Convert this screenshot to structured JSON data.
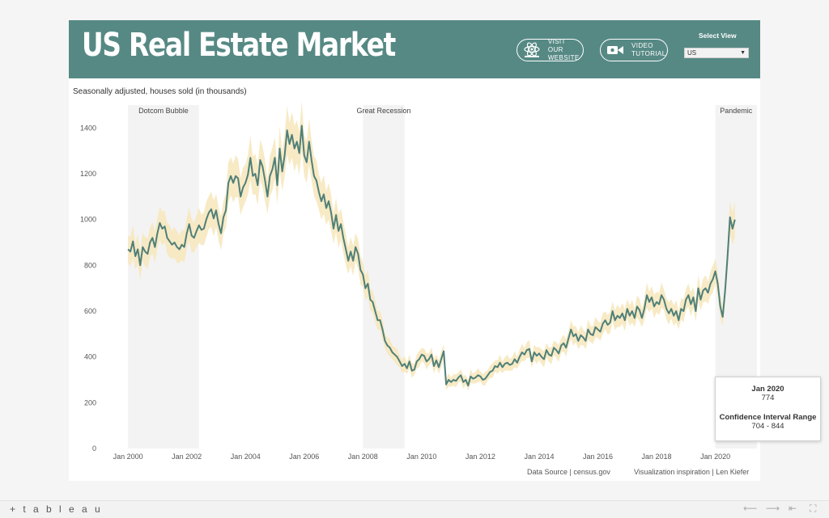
{
  "header": {
    "title": "US Real Estate Market",
    "website_line1": "VISIT OUR",
    "website_line2": "WEBSITE",
    "video_line1": "VIDEO",
    "video_line2": "TUTORIAL",
    "select_label": "Select View",
    "select_value": "US"
  },
  "subtitle": "Seasonally adjusted, houses sold (in thousands)",
  "footer": {
    "source": "Data Source | census.gov",
    "inspiration": "Visualization inspiration |  Len Kiefer"
  },
  "tooltip": {
    "date": "Jan 2020",
    "value": "774",
    "ci_label": "Confidence Interval Range",
    "ci_range": "704 - 844"
  },
  "bottom_bar": {
    "logo": "+ t a b l e a u"
  },
  "colors": {
    "header": "#568984",
    "line": "#4f7f78",
    "band": "#f6e8bf",
    "recession": "#f3f3f3"
  },
  "chart_data": {
    "type": "line",
    "title": "",
    "xlabel": "",
    "ylabel": "Seasonally adjusted, houses sold (in thousands)",
    "xlim": [
      "Aug 1999",
      "Jun 2021"
    ],
    "ylim": [
      0,
      1500
    ],
    "yticks": [
      0,
      200,
      400,
      600,
      800,
      1000,
      1200,
      1400
    ],
    "xticks": [
      "Jan 2000",
      "Jan 2002",
      "Jan 2004",
      "Jan 2006",
      "Jan 2008",
      "Jan 2010",
      "Jan 2012",
      "Jan 2014",
      "Jan 2016",
      "Jan 2018",
      "Jan 2020"
    ],
    "grid": false,
    "annotations": [
      {
        "label": "Dotcom Bubble",
        "start": "Jan 2000",
        "end": "Jun 2002"
      },
      {
        "label": "Great Recession",
        "start": "Jan 2008",
        "end": "Jun 2009"
      },
      {
        "label": "Pandemic",
        "start": "Jan 2020",
        "end": "Jun 2021"
      }
    ],
    "series": [
      {
        "confidence_band": "shaded range around line",
        "points": [
          [
            "Jan 2000",
            870
          ],
          [
            "Feb 2000",
            860
          ],
          [
            "Mar 2000",
            905
          ],
          [
            "Apr 2000",
            840
          ],
          [
            "May 2000",
            870
          ],
          [
            "Jun 2000",
            800
          ],
          [
            "Jul 2000",
            880
          ],
          [
            "Aug 2000",
            860
          ],
          [
            "Sep 2000",
            850
          ],
          [
            "Oct 2000",
            900
          ],
          [
            "Nov 2000",
            920
          ],
          [
            "Dec 2000",
            880
          ],
          [
            "Jan 2001",
            940
          ],
          [
            "Feb 2001",
            985
          ],
          [
            "Mar 2001",
            960
          ],
          [
            "Apr 2001",
            970
          ],
          [
            "May 2001",
            920
          ],
          [
            "Jun 2001",
            905
          ],
          [
            "Jul 2001",
            890
          ],
          [
            "Aug 2001",
            900
          ],
          [
            "Sep 2001",
            880
          ],
          [
            "Oct 2001",
            870
          ],
          [
            "Nov 2001",
            890
          ],
          [
            "Dec 2001",
            880
          ],
          [
            "Jan 2002",
            940
          ],
          [
            "Feb 2002",
            980
          ],
          [
            "Mar 2002",
            930
          ],
          [
            "Apr 2002",
            920
          ],
          [
            "May 2002",
            950
          ],
          [
            "Jun 2002",
            975
          ],
          [
            "Jul 2002",
            955
          ],
          [
            "Aug 2002",
            960
          ],
          [
            "Sep 2002",
            1000
          ],
          [
            "Oct 2002",
            1030
          ],
          [
            "Nov 2002",
            1045
          ],
          [
            "Dec 2002",
            1005
          ],
          [
            "Jan 2003",
            1040
          ],
          [
            "Feb 2003",
            980
          ],
          [
            "Mar 2003",
            940
          ],
          [
            "Apr 2003",
            1010
          ],
          [
            "May 2003",
            1040
          ],
          [
            "Jun 2003",
            1160
          ],
          [
            "Jul 2003",
            1190
          ],
          [
            "Aug 2003",
            1160
          ],
          [
            "Sep 2003",
            1190
          ],
          [
            "Oct 2003",
            1180
          ],
          [
            "Nov 2003",
            1100
          ],
          [
            "Dec 2003",
            1140
          ],
          [
            "Jan 2004",
            1160
          ],
          [
            "Feb 2004",
            1195
          ],
          [
            "Mar 2004",
            1270
          ],
          [
            "Apr 2004",
            1190
          ],
          [
            "May 2004",
            1200
          ],
          [
            "Jun 2004",
            1150
          ],
          [
            "Jul 2004",
            1260
          ],
          [
            "Aug 2004",
            1230
          ],
          [
            "Sep 2004",
            1170
          ],
          [
            "Oct 2004",
            1100
          ],
          [
            "Nov 2004",
            1190
          ],
          [
            "Dec 2004",
            1220
          ],
          [
            "Jan 2005",
            1270
          ],
          [
            "Feb 2005",
            1150
          ],
          [
            "Mar 2005",
            1310
          ],
          [
            "Apr 2005",
            1210
          ],
          [
            "May 2005",
            1280
          ],
          [
            "Jun 2005",
            1390
          ],
          [
            "Jul 2005",
            1330
          ],
          [
            "Aug 2005",
            1370
          ],
          [
            "Sep 2005",
            1310
          ],
          [
            "Oct 2005",
            1340
          ],
          [
            "Nov 2005",
            1290
          ],
          [
            "Dec 2005",
            1410
          ],
          [
            "Jan 2006",
            1280
          ],
          [
            "Feb 2006",
            1250
          ],
          [
            "Mar 2006",
            1340
          ],
          [
            "Apr 2006",
            1260
          ],
          [
            "May 2006",
            1190
          ],
          [
            "Jun 2006",
            1170
          ],
          [
            "Jul 2006",
            1120
          ],
          [
            "Aug 2006",
            1080
          ],
          [
            "Sep 2006",
            1110
          ],
          [
            "Oct 2006",
            1050
          ],
          [
            "Nov 2006",
            1080
          ],
          [
            "Dec 2006",
            1030
          ],
          [
            "Jan 2007",
            960
          ],
          [
            "Feb 2007",
            1020
          ],
          [
            "Mar 2007",
            950
          ],
          [
            "Apr 2007",
            980
          ],
          [
            "May 2007",
            920
          ],
          [
            "Jun 2007",
            870
          ],
          [
            "Jul 2007",
            820
          ],
          [
            "Aug 2007",
            860
          ],
          [
            "Sep 2007",
            820
          ],
          [
            "Oct 2007",
            880
          ],
          [
            "Nov 2007",
            850
          ],
          [
            "Dec 2007",
            780
          ],
          [
            "Jan 2008",
            760
          ],
          [
            "Feb 2008",
            700
          ],
          [
            "Mar 2008",
            720
          ],
          [
            "Apr 2008",
            650
          ],
          [
            "May 2008",
            640
          ],
          [
            "Jun 2008",
            600
          ],
          [
            "Jul 2008",
            560
          ],
          [
            "Aug 2008",
            560
          ],
          [
            "Sep 2008",
            520
          ],
          [
            "Oct 2008",
            470
          ],
          [
            "Nov 2008",
            450
          ],
          [
            "Dec 2008",
            440
          ],
          [
            "Jan 2009",
            420
          ],
          [
            "Feb 2009",
            410
          ],
          [
            "Mar 2009",
            400
          ],
          [
            "Apr 2009",
            380
          ],
          [
            "May 2009",
            360
          ],
          [
            "Jun 2009",
            370
          ],
          [
            "Jul 2009",
            350
          ],
          [
            "Aug 2009",
            380
          ],
          [
            "Sep 2009",
            340
          ],
          [
            "Oct 2009",
            345
          ],
          [
            "Nov 2009",
            380
          ],
          [
            "Dec 2009",
            390
          ],
          [
            "Jan 2010",
            410
          ],
          [
            "Feb 2010",
            405
          ],
          [
            "Mar 2010",
            380
          ],
          [
            "Apr 2010",
            390
          ],
          [
            "May 2010",
            410
          ],
          [
            "Jun 2010",
            360
          ],
          [
            "Jul 2010",
            385
          ],
          [
            "Aug 2010",
            355
          ],
          [
            "Sep 2010",
            390
          ],
          [
            "Oct 2010",
            425
          ],
          [
            "Nov 2010",
            280
          ],
          [
            "Dec 2010",
            300
          ],
          [
            "Jan 2011",
            290
          ],
          [
            "Feb 2011",
            300
          ],
          [
            "Mar 2011",
            295
          ],
          [
            "Apr 2011",
            310
          ],
          [
            "May 2011",
            320
          ],
          [
            "Jun 2011",
            290
          ],
          [
            "Jul 2011",
            300
          ],
          [
            "Aug 2011",
            275
          ],
          [
            "Sep 2011",
            315
          ],
          [
            "Oct 2011",
            305
          ],
          [
            "Nov 2011",
            310
          ],
          [
            "Dec 2011",
            320
          ],
          [
            "Jan 2012",
            315
          ],
          [
            "Feb 2012",
            300
          ],
          [
            "Mar 2012",
            305
          ],
          [
            "Apr 2012",
            320
          ],
          [
            "May 2012",
            335
          ],
          [
            "Jun 2012",
            340
          ],
          [
            "Jul 2012",
            360
          ],
          [
            "Aug 2012",
            355
          ],
          [
            "Sep 2012",
            375
          ],
          [
            "Oct 2012",
            355
          ],
          [
            "Nov 2012",
            370
          ],
          [
            "Dec 2012",
            375
          ],
          [
            "Jan 2013",
            365
          ],
          [
            "Feb 2013",
            370
          ],
          [
            "Mar 2013",
            390
          ],
          [
            "Apr 2013",
            375
          ],
          [
            "May 2013",
            400
          ],
          [
            "Jun 2013",
            420
          ],
          [
            "Jul 2013",
            410
          ],
          [
            "Aug 2013",
            430
          ],
          [
            "Sep 2013",
            435
          ],
          [
            "Oct 2013",
            380
          ],
          [
            "Nov 2013",
            420
          ],
          [
            "Dec 2013",
            405
          ],
          [
            "Jan 2014",
            415
          ],
          [
            "Feb 2014",
            400
          ],
          [
            "Mar 2014",
            390
          ],
          [
            "Apr 2014",
            430
          ],
          [
            "May 2014",
            410
          ],
          [
            "Jun 2014",
            405
          ],
          [
            "Jul 2014",
            440
          ],
          [
            "Aug 2014",
            430
          ],
          [
            "Sep 2014",
            415
          ],
          [
            "Oct 2014",
            450
          ],
          [
            "Nov 2014",
            460
          ],
          [
            "Dec 2014",
            440
          ],
          [
            "Jan 2015",
            480
          ],
          [
            "Feb 2015",
            520
          ],
          [
            "Mar 2015",
            490
          ],
          [
            "Apr 2015",
            500
          ],
          [
            "May 2015",
            470
          ],
          [
            "Jun 2015",
            495
          ],
          [
            "Jul 2015",
            485
          ],
          [
            "Aug 2015",
            470
          ],
          [
            "Sep 2015",
            520
          ],
          [
            "Oct 2015",
            500
          ],
          [
            "Nov 2015",
            495
          ],
          [
            "Dec 2015",
            530
          ],
          [
            "Jan 2016",
            520
          ],
          [
            "Feb 2016",
            510
          ],
          [
            "Mar 2016",
            545
          ],
          [
            "Apr 2016",
            560
          ],
          [
            "May 2016",
            540
          ],
          [
            "Jun 2016",
            550
          ],
          [
            "Jul 2016",
            600
          ],
          [
            "Aug 2016",
            560
          ],
          [
            "Sep 2016",
            580
          ],
          [
            "Oct 2016",
            570
          ],
          [
            "Nov 2016",
            590
          ],
          [
            "Dec 2016",
            560
          ],
          [
            "Jan 2017",
            610
          ],
          [
            "Feb 2017",
            580
          ],
          [
            "Mar 2017",
            600
          ],
          [
            "Apr 2017",
            570
          ],
          [
            "May 2017",
            620
          ],
          [
            "Jun 2017",
            605
          ],
          [
            "Jul 2017",
            570
          ],
          [
            "Aug 2017",
            610
          ],
          [
            "Sep 2017",
            670
          ],
          [
            "Oct 2017",
            640
          ],
          [
            "Nov 2017",
            660
          ],
          [
            "Dec 2017",
            620
          ],
          [
            "Jan 2018",
            640
          ],
          [
            "Feb 2018",
            630
          ],
          [
            "Mar 2018",
            670
          ],
          [
            "Apr 2018",
            650
          ],
          [
            "May 2018",
            610
          ],
          [
            "Jun 2018",
            590
          ],
          [
            "Jul 2018",
            610
          ],
          [
            "Aug 2018",
            580
          ],
          [
            "Sep 2018",
            600
          ],
          [
            "Oct 2018",
            560
          ],
          [
            "Nov 2018",
            610
          ],
          [
            "Dec 2018",
            600
          ],
          [
            "Jan 2019",
            650
          ],
          [
            "Feb 2019",
            670
          ],
          [
            "Mar 2019",
            630
          ],
          [
            "Apr 2019",
            660
          ],
          [
            "May 2019",
            600
          ],
          [
            "Jun 2019",
            700
          ],
          [
            "Jul 2019",
            650
          ],
          [
            "Aug 2019",
            690
          ],
          [
            "Sep 2019",
            700
          ],
          [
            "Oct 2019",
            680
          ],
          [
            "Nov 2019",
            720
          ],
          [
            "Dec 2019",
            740
          ],
          [
            "Jan 2020",
            774
          ],
          [
            "Feb 2020",
            720
          ],
          [
            "Mar 2020",
            620
          ],
          [
            "Apr 2020",
            575
          ],
          [
            "May 2020",
            690
          ],
          [
            "Jun 2020",
            840
          ],
          [
            "Jul 2020",
            1010
          ],
          [
            "Aug 2020",
            960
          ],
          [
            "Sep 2020",
            1000
          ]
        ]
      }
    ]
  }
}
